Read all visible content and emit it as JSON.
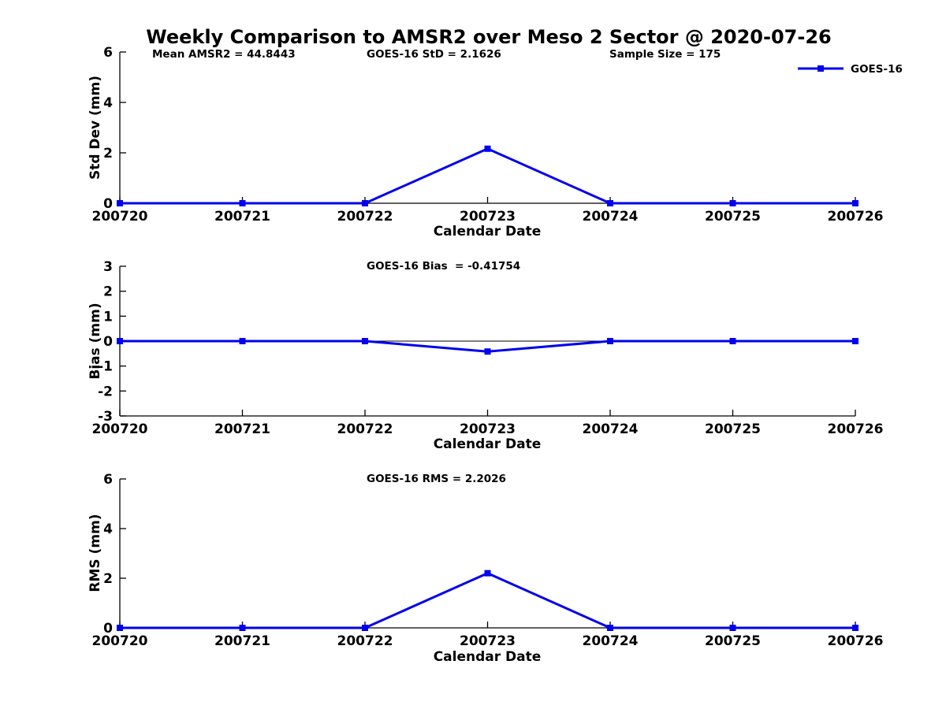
{
  "title": "Weekly Comparison to AMSR2 over Meso 2 Sector @ 2020-07-26",
  "colors": {
    "series": "#0000ee",
    "axis": "#000000",
    "background": "#ffffff"
  },
  "legend": {
    "label": "GOES-16",
    "position": "top-right"
  },
  "chart_data": [
    {
      "type": "line",
      "panel": "std-dev",
      "ylabel": "Std Dev (mm)",
      "xlabel": "Calendar Date",
      "categories": [
        "200720",
        "200721",
        "200722",
        "200723",
        "200724",
        "200725",
        "200726"
      ],
      "series": [
        {
          "name": "GOES-16",
          "values": [
            0,
            0,
            0,
            2.1626,
            0,
            0,
            0
          ]
        }
      ],
      "ylim": [
        0,
        6
      ],
      "yticks": [
        0,
        2,
        4,
        6
      ],
      "grid": false,
      "legend_position": "top-right",
      "annotations": [
        {
          "text": "Mean AMSR2 = 44.8443"
        },
        {
          "text": "GOES-16 StD = 2.1626"
        },
        {
          "text": "Sample Size = 175"
        }
      ]
    },
    {
      "type": "line",
      "panel": "bias",
      "ylabel": "Bias (mm)",
      "xlabel": "Calendar Date",
      "categories": [
        "200720",
        "200721",
        "200722",
        "200723",
        "200724",
        "200725",
        "200726"
      ],
      "series": [
        {
          "name": "GOES-16",
          "values": [
            0,
            0,
            0,
            -0.41754,
            0,
            0,
            0
          ]
        }
      ],
      "ylim": [
        -3,
        3
      ],
      "yticks": [
        3,
        2,
        1,
        0,
        -1,
        -2,
        -3
      ],
      "grid": false,
      "zero_line": true,
      "annotations": [
        {
          "text": "GOES-16 Bias  = -0.41754"
        }
      ]
    },
    {
      "type": "line",
      "panel": "rms",
      "ylabel": "RMS (mm)",
      "xlabel": "Calendar Date",
      "categories": [
        "200720",
        "200721",
        "200722",
        "200723",
        "200724",
        "200725",
        "200726"
      ],
      "series": [
        {
          "name": "GOES-16",
          "values": [
            0,
            0,
            0,
            2.2026,
            0,
            0,
            0
          ]
        }
      ],
      "ylim": [
        0,
        6
      ],
      "yticks": [
        0,
        2,
        4,
        6
      ],
      "grid": false,
      "annotations": [
        {
          "text": "GOES-16 RMS = 2.2026"
        }
      ]
    }
  ]
}
